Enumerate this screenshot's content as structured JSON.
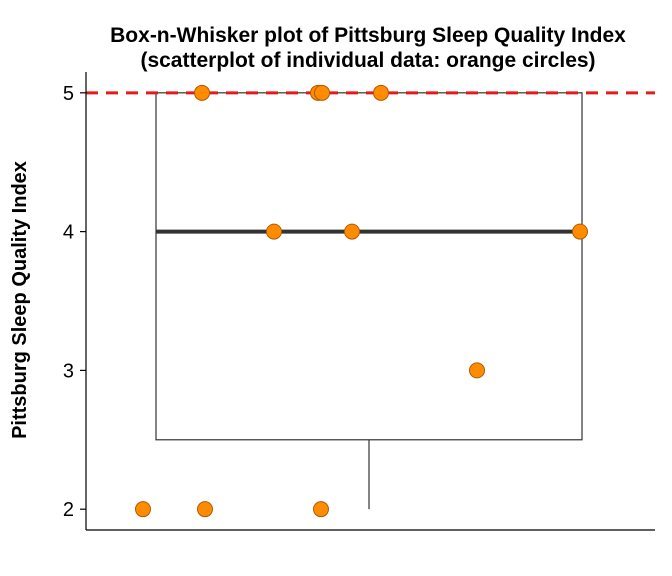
{
  "chart_data": {
    "type": "box",
    "title_line1": "Box-n-Whisker plot of Pittsburg Sleep Quality Index",
    "title_line2": "(scatterplot of individual data: orange circles)",
    "xlabel": "",
    "ylabel": "Pittsburg Sleep Quality Index",
    "ylim": [
      1.85,
      5.15
    ],
    "yticks": [
      2,
      3,
      4,
      5
    ],
    "ytick_labels": [
      "2",
      "3",
      "4",
      "5"
    ],
    "reference_line": {
      "y": 5,
      "style": "dashed",
      "color": "#e41a1c"
    },
    "box": {
      "median": 4,
      "q1": 2.5,
      "q3": 5,
      "whisker_low": 2,
      "whisker_high": 5,
      "box_color": "#333333"
    },
    "points": {
      "color": "#ff8c00",
      "edge_color": "#b35900",
      "values": [
        5,
        5,
        5,
        5,
        4,
        4,
        4,
        3,
        2,
        2,
        2
      ]
    },
    "grid": false,
    "legend": "none"
  }
}
